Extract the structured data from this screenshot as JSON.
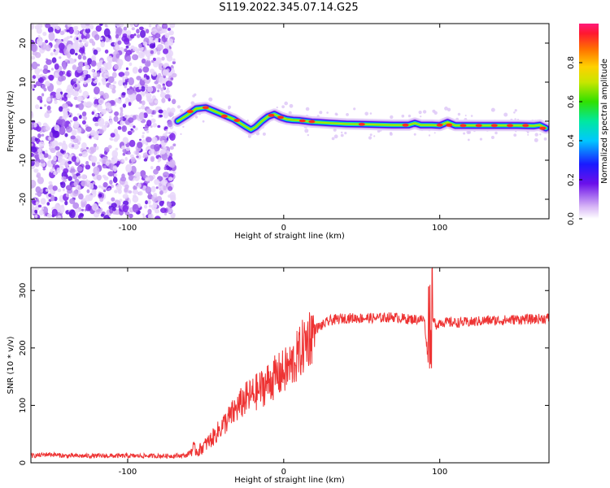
{
  "title": "S119.2022.345.07.14.G25",
  "chart_data": [
    {
      "type": "heatmap",
      "xlabel": "Height of straight line (km)",
      "ylabel": "Frequency (Hz)",
      "xlim": [
        -162,
        170
      ],
      "ylim": [
        -25,
        25
      ],
      "xticks": [
        -100,
        0,
        100
      ],
      "yticks": [
        -20,
        -10,
        0,
        10,
        20
      ],
      "colorbar": {
        "label": "Normalized spectral amplitude",
        "ticks": [
          0.0,
          0.2,
          0.4,
          0.6,
          0.8
        ],
        "range": [
          0,
          1
        ]
      },
      "noise_region_x": [
        -162,
        -70
      ],
      "ridge": {
        "x": [
          -68,
          -62,
          -56,
          -50,
          -44,
          -38,
          -32,
          -28,
          -24,
          -21,
          -18,
          -14,
          -10,
          -6,
          -2,
          2,
          6,
          10,
          14,
          18,
          22,
          30,
          40,
          50,
          60,
          70,
          80,
          84,
          88,
          95,
          100,
          105,
          110,
          120,
          130,
          140,
          150,
          160,
          164,
          168
        ],
        "y": [
          0,
          1.5,
          3.2,
          3.5,
          2.5,
          1.5,
          0.5,
          -0.5,
          -1.5,
          -2.2,
          -1.5,
          0,
          1.2,
          1.8,
          1.0,
          0.5,
          0.3,
          0.2,
          0,
          -0.2,
          -0.3,
          -0.5,
          -0.7,
          -0.8,
          -0.9,
          -1.0,
          -1.0,
          -0.5,
          -1.0,
          -1.0,
          -1.1,
          -0.3,
          -1.1,
          -1.1,
          -1.1,
          -1.1,
          -1.1,
          -1.2,
          -1.0,
          -1.8
        ]
      }
    },
    {
      "type": "line",
      "xlabel": "Height of straight line (km)",
      "ylabel": "SNR (10 * v/v)",
      "xlim": [
        -162,
        170
      ],
      "ylim": [
        0,
        340
      ],
      "xticks": [
        -100,
        0,
        100
      ],
      "yticks": [
        0,
        100,
        200,
        300
      ],
      "series": [
        {
          "color": "#ee3333",
          "x": [
            -162,
            -150,
            -140,
            -120,
            -100,
            -80,
            -70,
            -62,
            -58,
            -55,
            -50,
            -45,
            -40,
            -35,
            -30,
            -25,
            -20,
            -15,
            -10,
            -5,
            0,
            5,
            10,
            15,
            20,
            25,
            30,
            40,
            50,
            60,
            70,
            80,
            90,
            93,
            95,
            98,
            100,
            110,
            120,
            130,
            140,
            150,
            160,
            170
          ],
          "y": [
            12,
            15,
            12,
            12,
            12,
            12,
            12,
            13,
            25,
            20,
            32,
            45,
            62,
            78,
            95,
            110,
            118,
            128,
            140,
            150,
            158,
            170,
            190,
            215,
            233,
            240,
            248,
            252,
            252,
            252,
            254,
            250,
            250,
            170,
            250,
            240,
            245,
            244,
            245,
            248,
            248,
            250,
            250,
            252
          ]
        }
      ]
    }
  ]
}
